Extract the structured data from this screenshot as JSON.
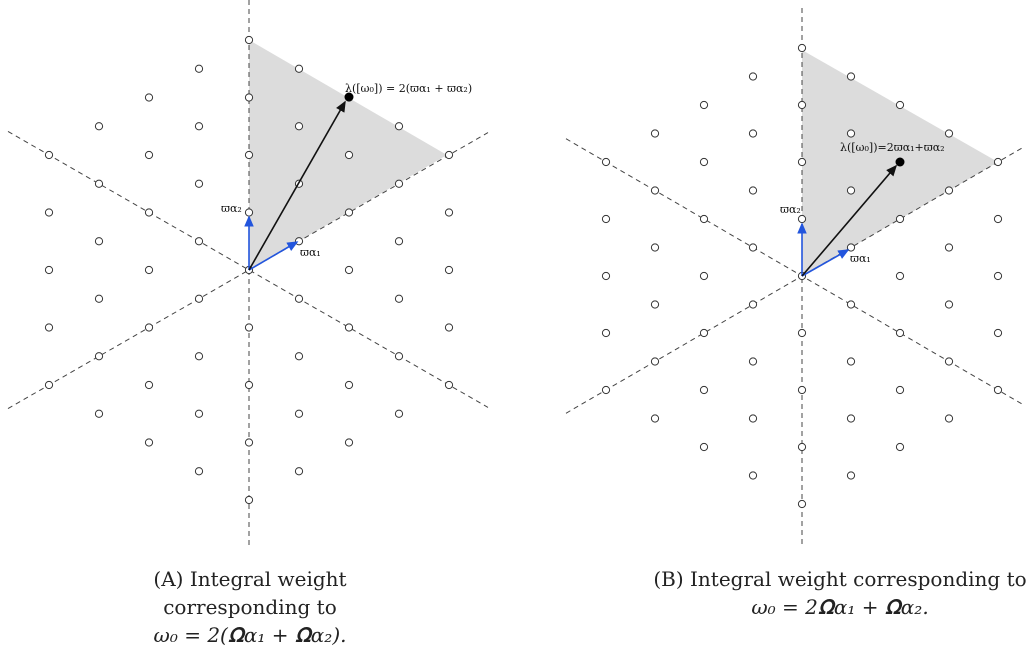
{
  "panels": [
    {
      "id": "a",
      "weight_label": "λ([ω₀]) = 2(ϖ_α₁ + ϖ_α₂)",
      "weight_label_main": "λ([ω₀]) = 2(ϖ",
      "weight_label_tail": "+ ϖ",
      "fund1_label": "ϖ",
      "fund2_label": "ϖ",
      "sub_alpha": "α",
      "sub1": "1",
      "sub2": "2",
      "caption_tag": "(A)",
      "caption_line1": "Integral weight corresponding to",
      "caption_line2": "ω₀ = 2(Ω_α₁ + Ω_α₂)."
    },
    {
      "id": "b",
      "weight_label": "λ([ω₀])=2ϖ_α₁+ϖ_α₂",
      "caption_tag": "(B)",
      "caption_line1": "Integral weight corresponding to",
      "caption_line2": "ω₀ = 2Ω_α₁ + Ω_α₂."
    }
  ],
  "captions": {
    "a_tag": "(A)",
    "a_line1": "Integral weight corresponding to",
    "a_line2": "ω₀ = 2(𝛀α₁ + 𝛀α₂).",
    "b_tag": "(B)",
    "b_line1": "Integral weight corresponding to",
    "b_line2": "ω₀ = 2𝛀α₁ + 𝛀α₂."
  },
  "labels": {
    "a_weight": "λ([ω₀]) = 2(ϖα₁ + ϖα₂)",
    "a_fund1": "ϖα₁",
    "a_fund2": "ϖα₂",
    "b_weight": "λ([ω₀])=2ϖα₁+ϖα₂",
    "b_fund1": "ϖα₁",
    "b_fund2": "ϖα₂"
  },
  "colors": {
    "chamber_fill": "#dcdcdc",
    "fundamental_weight_arrow": "#2255dd",
    "weight_arrow": "#111111",
    "lattice_point_stroke": "#333333",
    "wall_line": "#444444"
  }
}
